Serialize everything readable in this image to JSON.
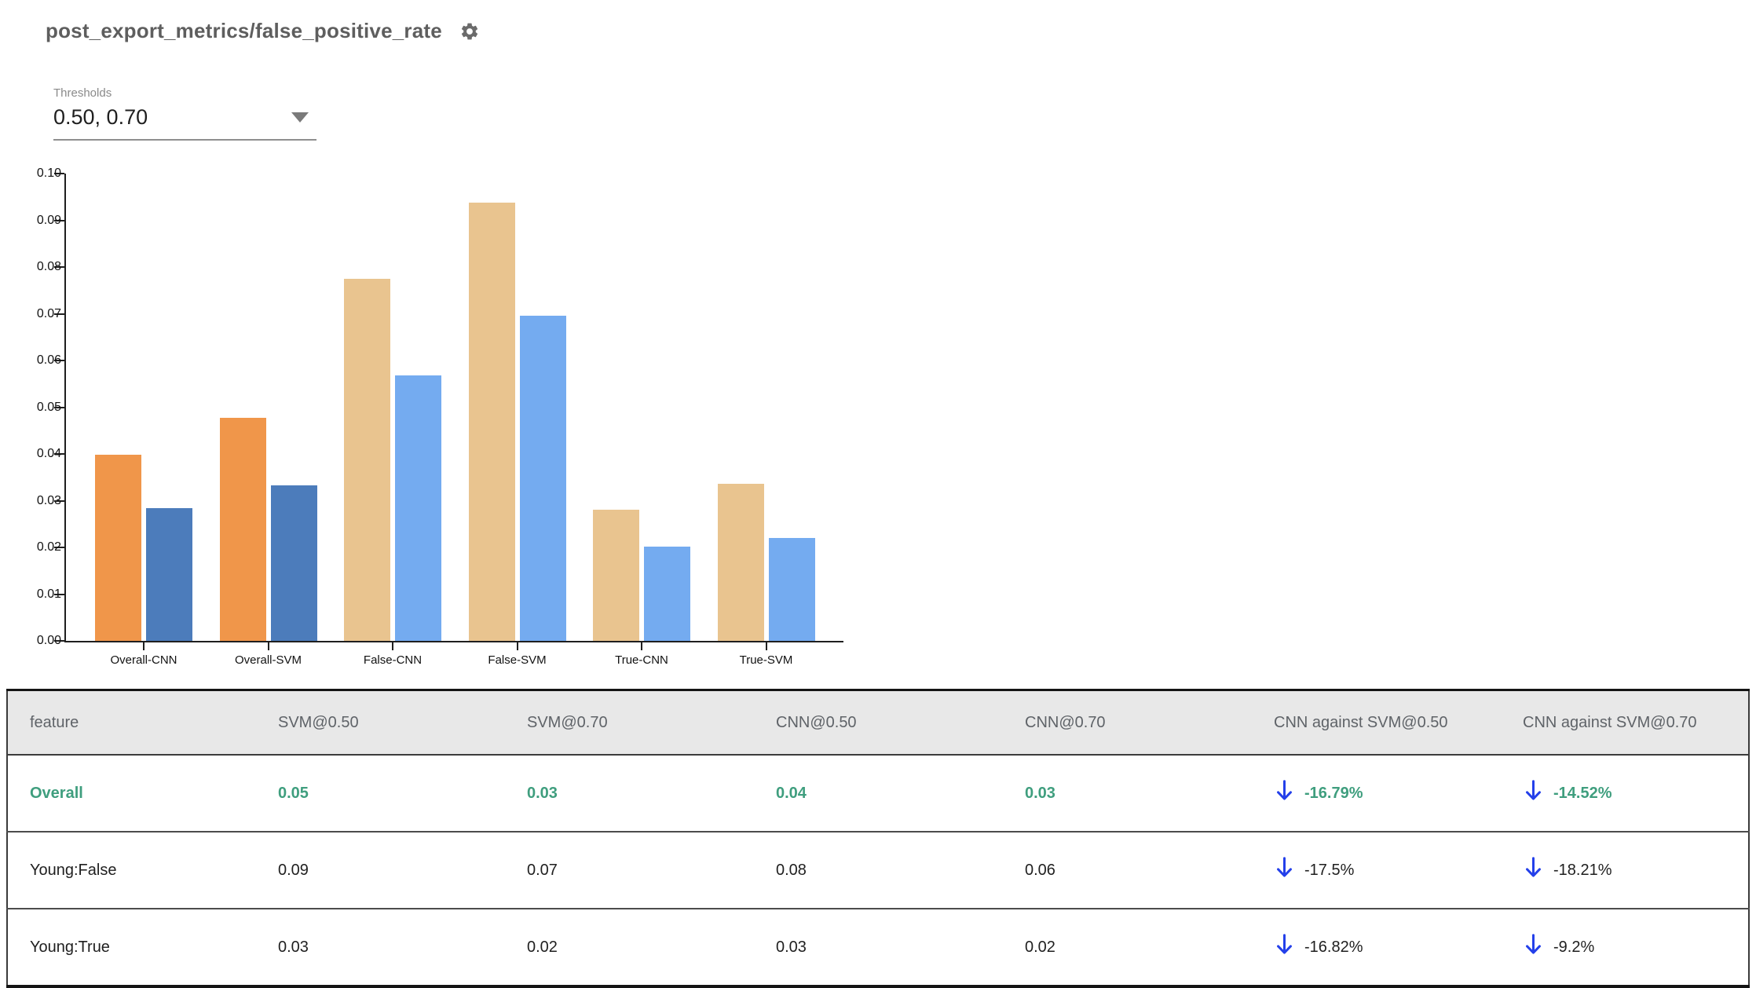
{
  "header": {
    "title": "post_export_metrics/false_positive_rate",
    "settings_icon": "gear-icon"
  },
  "thresholds": {
    "label": "Thresholds",
    "value": "0.50, 0.70"
  },
  "colors": {
    "title_gray": "#5e5e5e",
    "header_text_gray": "#5f6368",
    "table_header_bg": "#e8e8e8",
    "highlight_green": "#3f9e7e",
    "arrow_blue": "#2440ea",
    "overall_threshold_050": "#F0964A",
    "overall_threshold_070": "#4C7CBB",
    "slice_threshold_050": "#E9C48F",
    "slice_threshold_070": "#74ABF0",
    "axis_black": "#1f1f1f"
  },
  "chart_data": {
    "type": "bar",
    "title": "post_export_metrics/false_positive_rate",
    "xlabel": "",
    "ylabel": "",
    "ylim": [
      0,
      0.1
    ],
    "ytick_step": 0.01,
    "yticks": [
      "0.00",
      "0.01",
      "0.02",
      "0.03",
      "0.04",
      "0.05",
      "0.06",
      "0.07",
      "0.08",
      "0.09",
      "0.10"
    ],
    "grid": false,
    "legend": "none",
    "categories": [
      "Overall-CNN",
      "Overall-SVM",
      "False-CNN",
      "False-SVM",
      "True-CNN",
      "True-SVM"
    ],
    "groups": [
      {
        "label": "Overall-CNN",
        "values": [
          0.0398,
          0.0284
        ],
        "colors": [
          "#F0964A",
          "#4C7CBB"
        ]
      },
      {
        "label": "Overall-SVM",
        "values": [
          0.0478,
          0.0332
        ],
        "colors": [
          "#F0964A",
          "#4C7CBB"
        ]
      },
      {
        "label": "False-CNN",
        "values": [
          0.0774,
          0.0568
        ],
        "colors": [
          "#E9C48F",
          "#74ABF0"
        ]
      },
      {
        "label": "False-SVM",
        "values": [
          0.0938,
          0.0695
        ],
        "colors": [
          "#E9C48F",
          "#74ABF0"
        ]
      },
      {
        "label": "True-CNN",
        "values": [
          0.028,
          0.0201
        ],
        "colors": [
          "#E9C48F",
          "#74ABF0"
        ]
      },
      {
        "label": "True-SVM",
        "values": [
          0.0337,
          0.0221
        ],
        "colors": [
          "#E9C48F",
          "#74ABF0"
        ]
      }
    ]
  },
  "table": {
    "columns": [
      "feature",
      "SVM@0.50",
      "SVM@0.70",
      "CNN@0.50",
      "CNN@0.70",
      "CNN against SVM@0.50",
      "CNN against SVM@0.70"
    ],
    "rows": [
      {
        "feature": "Overall",
        "metrics": [
          "0.05",
          "0.03",
          "0.04",
          "0.03"
        ],
        "comparisons": [
          {
            "icon": "arrow-down",
            "text": "-16.79%"
          },
          {
            "icon": "arrow-down",
            "text": "-14.52%"
          }
        ],
        "highlight": true
      },
      {
        "feature": "Young:False",
        "metrics": [
          "0.09",
          "0.07",
          "0.08",
          "0.06"
        ],
        "comparisons": [
          {
            "icon": "arrow-down",
            "text": "-17.5%"
          },
          {
            "icon": "arrow-down",
            "text": "-18.21%"
          }
        ],
        "highlight": false
      },
      {
        "feature": "Young:True",
        "metrics": [
          "0.03",
          "0.02",
          "0.03",
          "0.02"
        ],
        "comparisons": [
          {
            "icon": "arrow-down",
            "text": "-16.82%"
          },
          {
            "icon": "arrow-down",
            "text": "-9.2%"
          }
        ],
        "highlight": false
      }
    ]
  }
}
